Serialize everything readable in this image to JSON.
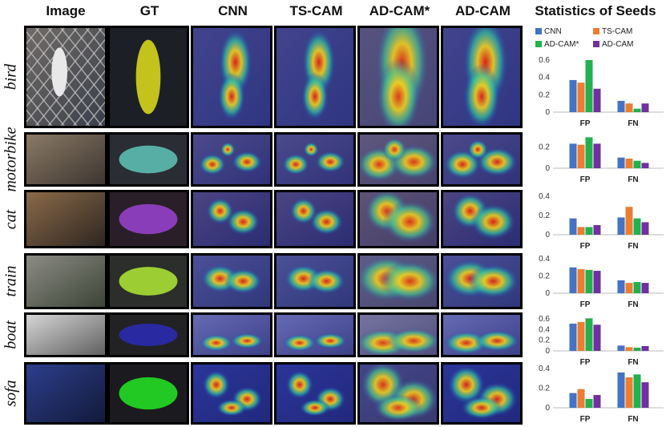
{
  "columns": [
    "Image",
    "GT",
    "CNN",
    "TS-CAM",
    "AD-CAM*",
    "AD-CAM"
  ],
  "stats_title": "Statistics of Seeds",
  "rows": [
    "bird",
    "motorbike",
    "cat",
    "train",
    "boat",
    "sofa"
  ],
  "legend": [
    {
      "name": "CNN",
      "color": "#4472c4"
    },
    {
      "name": "TS-CAM",
      "color": "#ed7d31"
    },
    {
      "name": "AD-CAM*",
      "color": "#22b14c"
    },
    {
      "name": "AD-CAM",
      "color": "#7030a0"
    }
  ],
  "chart_data": [
    {
      "type": "bar",
      "row": "bird",
      "categories": [
        "FP",
        "FN"
      ],
      "ylim": [
        0,
        0.6
      ],
      "yticks": [
        "0",
        "0.2",
        "0.4",
        "0.6"
      ],
      "series": [
        {
          "name": "CNN",
          "values": [
            0.37,
            0.13
          ]
        },
        {
          "name": "TS-CAM",
          "values": [
            0.34,
            0.1
          ]
        },
        {
          "name": "AD-CAM*",
          "values": [
            0.6,
            0.04
          ]
        },
        {
          "name": "AD-CAM",
          "values": [
            0.27,
            0.1
          ]
        }
      ]
    },
    {
      "type": "bar",
      "row": "motorbike",
      "categories": [
        "FP",
        "FN"
      ],
      "ylim": [
        0,
        0.3
      ],
      "yticks": [
        "0",
        "0.2"
      ],
      "series": [
        {
          "name": "CNN",
          "values": [
            0.23,
            0.1
          ]
        },
        {
          "name": "TS-CAM",
          "values": [
            0.22,
            0.09
          ]
        },
        {
          "name": "AD-CAM*",
          "values": [
            0.29,
            0.07
          ]
        },
        {
          "name": "AD-CAM",
          "values": [
            0.23,
            0.05
          ]
        }
      ]
    },
    {
      "type": "bar",
      "row": "cat",
      "categories": [
        "FP",
        "FN"
      ],
      "ylim": [
        0,
        0.4
      ],
      "yticks": [
        "0",
        "0.2",
        "0.4"
      ],
      "series": [
        {
          "name": "CNN",
          "values": [
            0.17,
            0.18
          ]
        },
        {
          "name": "TS-CAM",
          "values": [
            0.08,
            0.29
          ]
        },
        {
          "name": "AD-CAM*",
          "values": [
            0.08,
            0.17
          ]
        },
        {
          "name": "AD-CAM",
          "values": [
            0.1,
            0.13
          ]
        }
      ]
    },
    {
      "type": "bar",
      "row": "train",
      "categories": [
        "FP",
        "FN"
      ],
      "ylim": [
        0,
        0.4
      ],
      "yticks": [
        "0",
        "0.2",
        "0.4"
      ],
      "series": [
        {
          "name": "CNN",
          "values": [
            0.3,
            0.15
          ]
        },
        {
          "name": "TS-CAM",
          "values": [
            0.28,
            0.12
          ]
        },
        {
          "name": "AD-CAM*",
          "values": [
            0.27,
            0.13
          ]
        },
        {
          "name": "AD-CAM",
          "values": [
            0.26,
            0.12
          ]
        }
      ]
    },
    {
      "type": "bar",
      "row": "boat",
      "categories": [
        "FP",
        "FN"
      ],
      "ylim": [
        0,
        0.6
      ],
      "yticks": [
        "0",
        "0.2",
        "0.4",
        "0.6"
      ],
      "series": [
        {
          "name": "CNN",
          "values": [
            0.51,
            0.1
          ]
        },
        {
          "name": "TS-CAM",
          "values": [
            0.54,
            0.07
          ]
        },
        {
          "name": "AD-CAM*",
          "values": [
            0.61,
            0.06
          ]
        },
        {
          "name": "AD-CAM",
          "values": [
            0.49,
            0.09
          ]
        }
      ]
    },
    {
      "type": "bar",
      "row": "sofa",
      "categories": [
        "FP",
        "FN"
      ],
      "ylim": [
        0,
        0.4
      ],
      "yticks": [
        "0",
        "0.2",
        "0.4"
      ],
      "series": [
        {
          "name": "CNN",
          "values": [
            0.15,
            0.36
          ]
        },
        {
          "name": "TS-CAM",
          "values": [
            0.19,
            0.31
          ]
        },
        {
          "name": "AD-CAM*",
          "values": [
            0.09,
            0.34
          ]
        },
        {
          "name": "AD-CAM",
          "values": [
            0.13,
            0.26
          ]
        }
      ]
    }
  ]
}
